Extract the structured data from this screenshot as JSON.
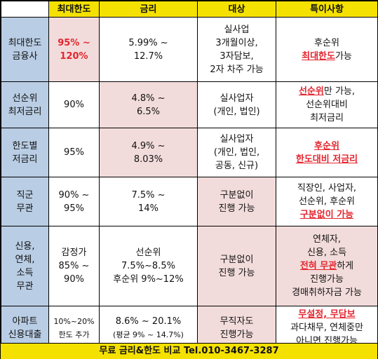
{
  "header": {
    "corner": "",
    "col1": "최대한도",
    "col2": "금리",
    "col3": "대상",
    "col4": "특이사항"
  },
  "rows": [
    {
      "name": [
        "최대한도",
        "금융사"
      ],
      "limit": [
        "95% ~",
        "120%"
      ],
      "rate": [
        "5.99% ~",
        "12.7%"
      ],
      "target": [
        "실사업",
        "3개월이상,",
        "3자담보,",
        "2자 차주 가능"
      ],
      "notes": [
        "후순위",
        "최대한도",
        "가능"
      ]
    },
    {
      "name": [
        "선순위",
        "최저금리"
      ],
      "limit": [
        "90%"
      ],
      "rate": [
        "4.8% ~",
        "6.5%"
      ],
      "target": [
        "실사업자",
        "(개인, 법인)"
      ],
      "notes": [
        "선순위",
        "만 가능,",
        "선순위대비",
        "최저금리"
      ]
    },
    {
      "name": [
        "한도별",
        "저금리"
      ],
      "limit": [
        "95%"
      ],
      "rate": [
        "4.9% ~",
        "8.03%"
      ],
      "target": [
        "실사업자",
        "(개인, 법인,",
        "공동, 신규)"
      ],
      "notes": [
        "후순위",
        "한도대비 저금리"
      ]
    },
    {
      "name": [
        "직군",
        "무관"
      ],
      "limit": [
        "90% ~",
        "95%"
      ],
      "rate": [
        "7.5% ~",
        "14%"
      ],
      "target": [
        "구분없이",
        "진행 가능"
      ],
      "notes": [
        "직장인, 사업자,",
        "선순위, 후순위",
        "구분없이 가능"
      ]
    },
    {
      "name": [
        "신용,",
        "연체,",
        "소득",
        "무관"
      ],
      "limit": [
        "감정가",
        "85% ~",
        "90%"
      ],
      "rate": [
        "선순위",
        "7.5%~8.5%",
        "후순위 9%~12%"
      ],
      "target": [
        "구분없이",
        "진행 가능"
      ],
      "notes": [
        "연체자,",
        "신용, 소득",
        "전혀 무관",
        "하게",
        "진행가능",
        "경매취하자금 가능"
      ]
    },
    {
      "name": [
        "아파트",
        "신용대출"
      ],
      "limit": [
        "10%~20%",
        "한도 추가"
      ],
      "rate": [
        "8.6% ~ 20.1%",
        "(평균 9% ~ 14.7%)"
      ],
      "target": [
        "무직자도",
        "진행가능"
      ],
      "notes": [
        "무설정, 무담보",
        "과다채무, 연체중만",
        "아니면 진행가능"
      ]
    }
  ],
  "footer": "무료 금리&한도 비교 Tel.010-3467-3287"
}
